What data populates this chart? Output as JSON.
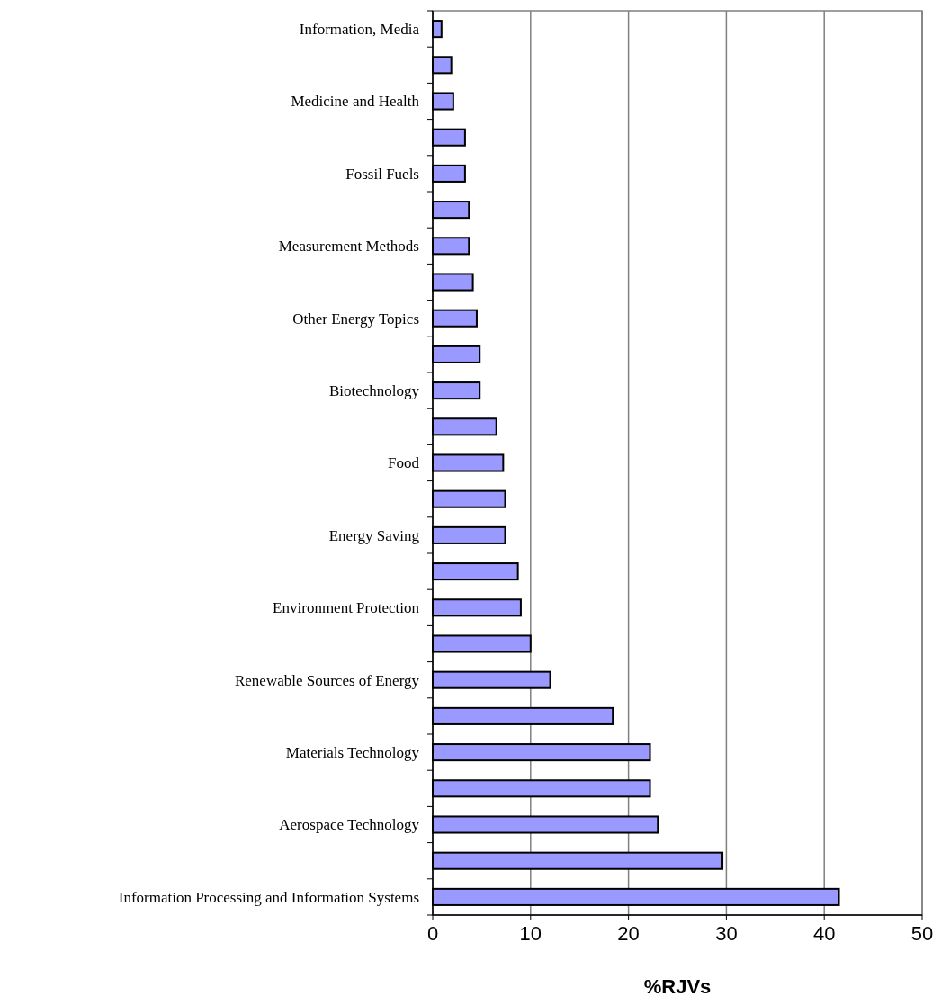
{
  "chart_data": {
    "type": "bar",
    "orientation": "horizontal",
    "xlabel": "%RJVs",
    "categories": [
      "Information, Media",
      null,
      "Medicine and Health",
      null,
      "Fossil Fuels",
      null,
      "Measurement Methods",
      null,
      "Other Energy Topics",
      null,
      "Biotechnology",
      null,
      "Food",
      null,
      "Energy Saving",
      null,
      "Environment Protection",
      null,
      "Renewable Sources of Energy",
      null,
      "Materials Technology",
      null,
      "Aerospace Technology",
      null,
      "Information Processing and Information Systems"
    ],
    "values": [
      0.9,
      1.9,
      2.1,
      3.3,
      3.3,
      3.7,
      3.7,
      4.1,
      4.5,
      4.8,
      4.8,
      6.5,
      7.2,
      7.4,
      7.4,
      8.7,
      9.0,
      10.0,
      12.0,
      18.4,
      22.2,
      22.2,
      23.0,
      29.6,
      41.5
    ],
    "color": "#9999ff",
    "xlim": [
      0,
      50
    ],
    "xticks": [
      0,
      10,
      20,
      30,
      40,
      50
    ],
    "grid": "x"
  }
}
